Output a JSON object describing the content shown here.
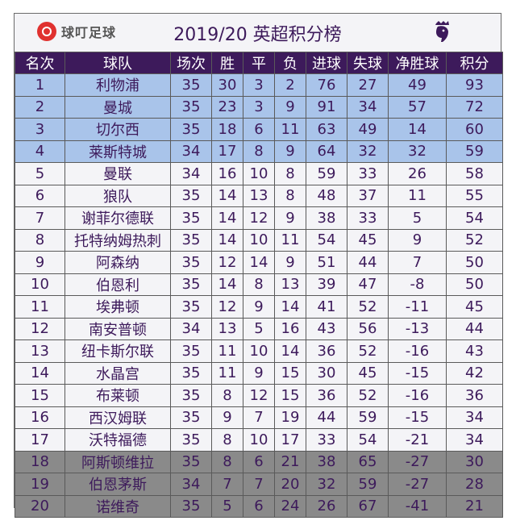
{
  "brand": {
    "name": "球叮足球"
  },
  "title": "2019/20 英超积分榜",
  "columns": [
    "名次",
    "球队",
    "场次",
    "胜",
    "平",
    "负",
    "进球",
    "失球",
    "净胜球",
    "积分"
  ],
  "rows": [
    {
      "rank": "1",
      "team": "利物浦",
      "played": "35",
      "won": "30",
      "drawn": "3",
      "lost": "2",
      "gf": "76",
      "ga": "27",
      "gd": "49",
      "pts": "93",
      "zone": "top"
    },
    {
      "rank": "2",
      "team": "曼城",
      "played": "35",
      "won": "23",
      "drawn": "3",
      "lost": "9",
      "gf": "91",
      "ga": "34",
      "gd": "57",
      "pts": "72",
      "zone": "top"
    },
    {
      "rank": "3",
      "team": "切尔西",
      "played": "35",
      "won": "18",
      "drawn": "6",
      "lost": "11",
      "gf": "63",
      "ga": "49",
      "gd": "14",
      "pts": "60",
      "zone": "top"
    },
    {
      "rank": "4",
      "team": "莱斯特城",
      "played": "34",
      "won": "17",
      "drawn": "8",
      "lost": "9",
      "gf": "64",
      "ga": "32",
      "gd": "32",
      "pts": "59",
      "zone": "top"
    },
    {
      "rank": "5",
      "team": "曼联",
      "played": "34",
      "won": "16",
      "drawn": "10",
      "lost": "8",
      "gf": "59",
      "ga": "33",
      "gd": "26",
      "pts": "58",
      "zone": "mid"
    },
    {
      "rank": "6",
      "team": "狼队",
      "played": "35",
      "won": "14",
      "drawn": "13",
      "lost": "8",
      "gf": "48",
      "ga": "37",
      "gd": "11",
      "pts": "55",
      "zone": "mid"
    },
    {
      "rank": "7",
      "team": "谢菲尔德联",
      "played": "35",
      "won": "14",
      "drawn": "12",
      "lost": "9",
      "gf": "38",
      "ga": "33",
      "gd": "5",
      "pts": "54",
      "zone": "mid"
    },
    {
      "rank": "8",
      "team": "托特纳姆热刺",
      "played": "35",
      "won": "14",
      "drawn": "10",
      "lost": "11",
      "gf": "54",
      "ga": "45",
      "gd": "9",
      "pts": "52",
      "zone": "mid"
    },
    {
      "rank": "9",
      "team": "阿森纳",
      "played": "35",
      "won": "12",
      "drawn": "14",
      "lost": "9",
      "gf": "51",
      "ga": "44",
      "gd": "7",
      "pts": "50",
      "zone": "mid"
    },
    {
      "rank": "10",
      "team": "伯恩利",
      "played": "35",
      "won": "14",
      "drawn": "8",
      "lost": "13",
      "gf": "39",
      "ga": "47",
      "gd": "-8",
      "pts": "50",
      "zone": "mid"
    },
    {
      "rank": "11",
      "team": "埃弗顿",
      "played": "35",
      "won": "12",
      "drawn": "9",
      "lost": "14",
      "gf": "41",
      "ga": "52",
      "gd": "-11",
      "pts": "45",
      "zone": "mid"
    },
    {
      "rank": "12",
      "team": "南安普顿",
      "played": "34",
      "won": "13",
      "drawn": "5",
      "lost": "16",
      "gf": "43",
      "ga": "56",
      "gd": "-13",
      "pts": "44",
      "zone": "mid"
    },
    {
      "rank": "13",
      "team": "纽卡斯尔联",
      "played": "35",
      "won": "11",
      "drawn": "10",
      "lost": "14",
      "gf": "36",
      "ga": "52",
      "gd": "-16",
      "pts": "43",
      "zone": "mid"
    },
    {
      "rank": "14",
      "team": "水晶宫",
      "played": "35",
      "won": "11",
      "drawn": "9",
      "lost": "15",
      "gf": "30",
      "ga": "45",
      "gd": "-15",
      "pts": "42",
      "zone": "mid"
    },
    {
      "rank": "15",
      "team": "布莱顿",
      "played": "35",
      "won": "8",
      "drawn": "12",
      "lost": "15",
      "gf": "36",
      "ga": "52",
      "gd": "-16",
      "pts": "36",
      "zone": "mid"
    },
    {
      "rank": "16",
      "team": "西汉姆联",
      "played": "35",
      "won": "9",
      "drawn": "7",
      "lost": "19",
      "gf": "44",
      "ga": "59",
      "gd": "-15",
      "pts": "34",
      "zone": "mid"
    },
    {
      "rank": "17",
      "team": "沃特福德",
      "played": "35",
      "won": "8",
      "drawn": "10",
      "lost": "17",
      "gf": "33",
      "ga": "54",
      "gd": "-21",
      "pts": "34",
      "zone": "mid"
    },
    {
      "rank": "18",
      "team": "阿斯顿维拉",
      "played": "35",
      "won": "8",
      "drawn": "6",
      "lost": "21",
      "gf": "38",
      "ga": "65",
      "gd": "-27",
      "pts": "30",
      "zone": "rel"
    },
    {
      "rank": "19",
      "team": "伯恩茅斯",
      "played": "34",
      "won": "7",
      "drawn": "7",
      "lost": "20",
      "gf": "32",
      "ga": "59",
      "gd": "-27",
      "pts": "28",
      "zone": "rel"
    },
    {
      "rank": "20",
      "team": "诺维奇",
      "played": "35",
      "won": "5",
      "drawn": "6",
      "lost": "24",
      "gf": "26",
      "ga": "67",
      "gd": "-41",
      "pts": "21",
      "zone": "rel"
    }
  ],
  "colors": {
    "header_bg": "#3d1a5b",
    "top_zone": "#a9c4ea",
    "mid_zone": "#f4f4f7",
    "relegation_zone": "#8a8a8a",
    "brand_red": "#e0312f"
  },
  "icons": {
    "brand": "qiuding-logo-icon",
    "league": "premier-league-lion-icon"
  }
}
